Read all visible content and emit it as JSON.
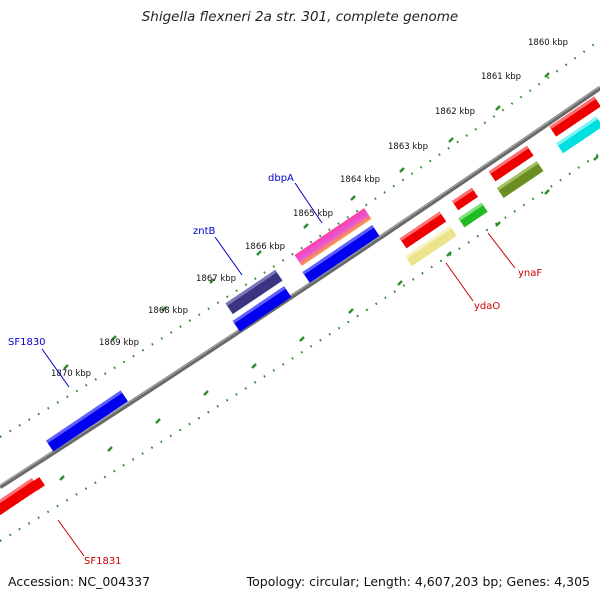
{
  "title": "Shigella flexneri 2a str. 301, complete genome",
  "accession": "Accession: NC_004337",
  "topology": "Topology: circular; Length: 4,607,203 bp; Genes: 4,305",
  "colors": {
    "backbone": "#6e6e6e",
    "ticks": "#2e8b2e",
    "label_forward": "#0000cc",
    "label_reverse": "#cc0000"
  },
  "kbp_labels": [
    "1860 kbp",
    "1861 kbp",
    "1862 kbp",
    "1863 kbp",
    "1864 kbp",
    "1865 kbp",
    "1866 kbp",
    "1867 kbp",
    "1868 kbp",
    "1869 kbp",
    "1870 kbp"
  ],
  "gene_labels": {
    "dbpA": "dbpA",
    "zntB": "zntB",
    "SF1830": "SF1830",
    "ydaO": "ydaO",
    "ynaF": "ynaF",
    "SF1831": "SF1831"
  },
  "features": [
    {
      "name": "gene-block-cyan",
      "color": "#00e5e5"
    },
    {
      "name": "gene-block-red-top",
      "color": "#ee0000"
    },
    {
      "name": "gene-block-olive",
      "color": "#6b8e23"
    },
    {
      "name": "gene-block-red-mid",
      "color": "#ee0000"
    },
    {
      "name": "gene-block-green",
      "color": "#22bb22"
    },
    {
      "name": "gene-block-red-small",
      "color": "#ee0000"
    },
    {
      "name": "gene-block-red-ydaO",
      "color": "#ee0000"
    },
    {
      "name": "gene-block-khaki",
      "color": "#eee08a"
    },
    {
      "name": "gene-block-dbpA",
      "color": "#ff44aa"
    },
    {
      "name": "gene-block-blue-dbpA",
      "color": "#0000ee"
    },
    {
      "name": "gene-block-zntB",
      "color": "#3a3580"
    },
    {
      "name": "gene-block-blue-zntB",
      "color": "#0000ee"
    },
    {
      "name": "gene-block-SF1830",
      "color": "#0000ee"
    },
    {
      "name": "gene-block-SF1831",
      "color": "#ee0000"
    }
  ]
}
